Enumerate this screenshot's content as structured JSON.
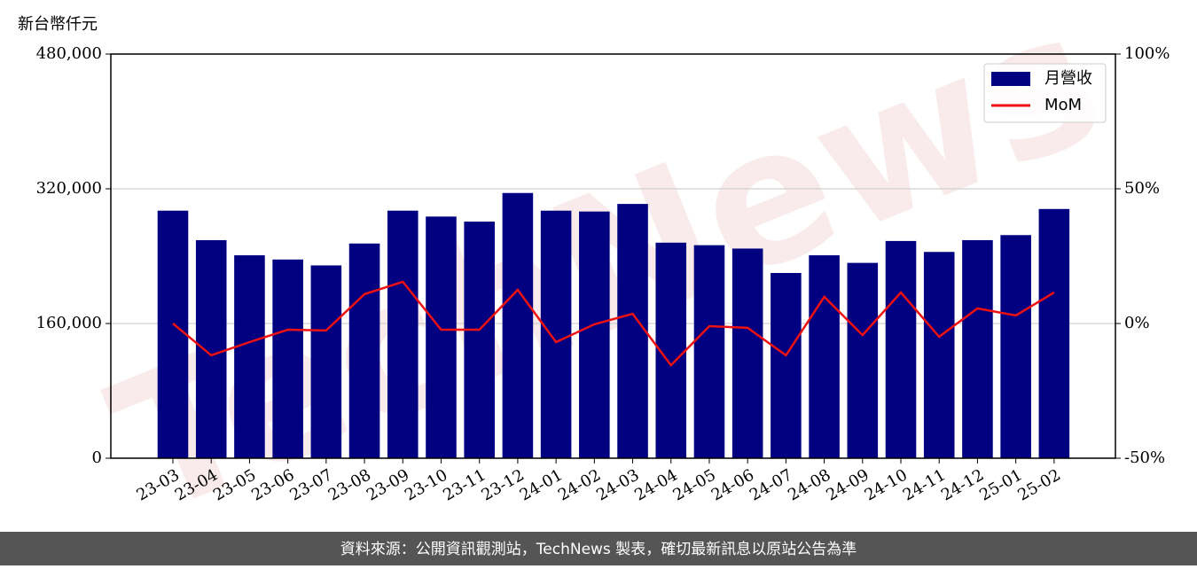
{
  "chart_data": {
    "type": "bar",
    "y_label": "新台幣仟元",
    "watermark": "TechNews",
    "source": "資料來源：公開資訊觀測站，TechNews 製表，確切最新訊息以原站公告為準",
    "categories": [
      "23-03",
      "23-04",
      "23-05",
      "23-06",
      "23-07",
      "23-08",
      "23-09",
      "23-10",
      "23-11",
      "23-12",
      "24-01",
      "24-02",
      "24-03",
      "24-04",
      "24-05",
      "24-06",
      "24-07",
      "24-08",
      "24-09",
      "24-10",
      "24-11",
      "24-12",
      "25-01",
      "25-02"
    ],
    "series": [
      {
        "name": "月營收",
        "type": "bar",
        "color": "#000080",
        "values": [
          294000,
          259000,
          241000,
          236000,
          229000,
          255000,
          294000,
          287000,
          281000,
          315000,
          294000,
          293000,
          302000,
          256000,
          253000,
          249000,
          220000,
          241000,
          232000,
          258000,
          245000,
          259000,
          265000,
          296000
        ]
      },
      {
        "name": "MoM",
        "type": "line",
        "color": "#ee1111",
        "axis": "y2",
        "values": [
          0,
          -11.8,
          -6.9,
          -2.3,
          -2.6,
          10.9,
          15.5,
          -2.3,
          -2.3,
          12.5,
          -6.9,
          -0.3,
          3.6,
          -15.5,
          -1.0,
          -1.6,
          -11.8,
          9.9,
          -4.3,
          11.5,
          -4.9,
          5.6,
          3.0,
          11.5
        ]
      }
    ],
    "ylim": [
      0,
      480000
    ],
    "yticks": [
      0,
      {
        "value": 160000,
        "label": "160,000"
      },
      {
        "value": 320000,
        "label": "320,000"
      },
      {
        "value": 480000,
        "label": "480,000"
      }
    ],
    "y2lim": [
      -50,
      100
    ],
    "y2ticks": [
      {
        "value": -50,
        "label": "-50%"
      },
      {
        "value": 0,
        "label": "0%"
      },
      {
        "value": 50,
        "label": "50%"
      },
      {
        "value": 100,
        "label": "100%"
      }
    ],
    "grid": true,
    "legend": "upper right"
  }
}
